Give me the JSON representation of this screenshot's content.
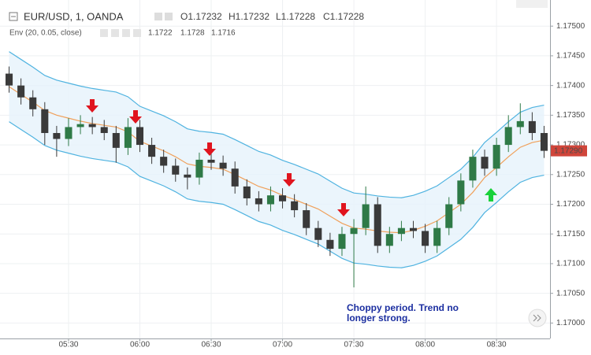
{
  "chart_data": {
    "type": "candlestick",
    "title": "EUR/USD, 1, OANDA",
    "ohlc_text": [
      "O1.17232",
      "H1.17232",
      "L1.17228",
      "C1.17228"
    ],
    "indicator": {
      "name": "Env (20, 0.05, close)",
      "bands": [
        {
          "role": "mid",
          "color": "#f0a05a",
          "legend_value": "1.1722",
          "values": [
            1.17398,
            1.17385,
            1.17372,
            1.17358,
            1.1735,
            1.17345,
            1.1734,
            1.17336,
            1.17333,
            1.1733,
            1.17322,
            1.17306,
            1.17298,
            1.1729,
            1.1728,
            1.17268,
            1.17264,
            1.17262,
            1.17259,
            1.1725,
            1.1724,
            1.1723,
            1.17224,
            1.17215,
            1.17208,
            1.172,
            1.17192,
            1.1718,
            1.17168,
            1.1716,
            1.17158,
            1.17155,
            1.17153,
            1.17152,
            1.17156,
            1.17163,
            1.17172,
            1.17186,
            1.172,
            1.1722,
            1.17245,
            1.17262,
            1.1728,
            1.17296,
            1.17304,
            1.17308
          ]
        },
        {
          "role": "upper",
          "color": "#4fb3e0",
          "legend_value": "1.1728",
          "values": [
            1.17457,
            1.17444,
            1.17431,
            1.17417,
            1.17409,
            1.17404,
            1.17399,
            1.17395,
            1.17392,
            1.17389,
            1.17381,
            1.17365,
            1.17357,
            1.17349,
            1.17339,
            1.17327,
            1.17323,
            1.17321,
            1.17318,
            1.17309,
            1.17299,
            1.17289,
            1.17283,
            1.17274,
            1.17267,
            1.17259,
            1.17251,
            1.17239,
            1.17227,
            1.17219,
            1.17217,
            1.17214,
            1.17212,
            1.17211,
            1.17215,
            1.17222,
            1.17231,
            1.17245,
            1.17259,
            1.17279,
            1.17304,
            1.17321,
            1.17339,
            1.17355,
            1.17363,
            1.17367
          ]
        },
        {
          "role": "lower",
          "color": "#4fb3e0",
          "legend_value": "1.1716",
          "values": [
            1.17339,
            1.17326,
            1.17313,
            1.17299,
            1.17291,
            1.17286,
            1.17281,
            1.17277,
            1.17274,
            1.17271,
            1.17263,
            1.17247,
            1.17239,
            1.17231,
            1.17221,
            1.17209,
            1.17205,
            1.17203,
            1.172,
            1.17191,
            1.17181,
            1.17171,
            1.17165,
            1.17156,
            1.17149,
            1.17141,
            1.17133,
            1.17121,
            1.17109,
            1.17101,
            1.17099,
            1.17096,
            1.17094,
            1.17093,
            1.17097,
            1.17104,
            1.17113,
            1.17127,
            1.17141,
            1.17161,
            1.17186,
            1.17203,
            1.17221,
            1.17237,
            1.17245,
            1.17249
          ]
        }
      ]
    },
    "categories": [
      null,
      null,
      null,
      null,
      null,
      "05:30",
      null,
      null,
      null,
      null,
      null,
      "06:00",
      null,
      null,
      null,
      null,
      null,
      "06:30",
      null,
      null,
      null,
      null,
      null,
      "07:00",
      null,
      null,
      null,
      null,
      null,
      "07:30",
      null,
      null,
      null,
      null,
      null,
      "08:00",
      null,
      null,
      null,
      null,
      null,
      "08:30",
      null,
      null,
      null,
      null
    ],
    "open": [
      1.1742,
      1.174,
      1.1738,
      1.1736,
      1.1732,
      1.1731,
      1.1733,
      1.17335,
      1.1733,
      1.1732,
      1.17295,
      1.1733,
      1.173,
      1.1728,
      1.17265,
      1.1725,
      1.17245,
      1.17275,
      1.1727,
      1.1726,
      1.1723,
      1.1721,
      1.172,
      1.17215,
      1.17205,
      1.1719,
      1.1716,
      1.1714,
      1.17125,
      1.1715,
      1.1716,
      1.172,
      1.1713,
      1.1715,
      1.1716,
      1.17155,
      1.1713,
      1.1716,
      1.172,
      1.1724,
      1.1728,
      1.1726,
      1.173,
      1.1733,
      1.1734,
      1.1732
    ],
    "high": [
      1.17432,
      1.17412,
      1.17392,
      1.17372,
      1.17332,
      1.17345,
      1.1735,
      1.17347,
      1.17342,
      1.17332,
      1.17345,
      1.17342,
      1.17312,
      1.17292,
      1.17277,
      1.17262,
      1.17287,
      1.17287,
      1.17282,
      1.17272,
      1.17242,
      1.17222,
      1.1723,
      1.17227,
      1.17217,
      1.17202,
      1.17172,
      1.17152,
      1.17162,
      1.17175,
      1.1723,
      1.17212,
      1.17162,
      1.17172,
      1.17172,
      1.17167,
      1.17172,
      1.17212,
      1.17252,
      1.17292,
      1.17292,
      1.17312,
      1.1735,
      1.1737,
      1.17355,
      1.17332
    ],
    "low": [
      1.17388,
      1.17368,
      1.17348,
      1.173,
      1.1728,
      1.17298,
      1.17318,
      1.17318,
      1.17308,
      1.1727,
      1.17283,
      1.17288,
      1.17268,
      1.17253,
      1.17238,
      1.17225,
      1.17233,
      1.17258,
      1.17248,
      1.17218,
      1.17198,
      1.17188,
      1.17188,
      1.17193,
      1.17178,
      1.17148,
      1.17128,
      1.17113,
      1.17113,
      1.1706,
      1.17148,
      1.17118,
      1.17118,
      1.17138,
      1.17143,
      1.17118,
      1.17118,
      1.17148,
      1.17188,
      1.17228,
      1.17248,
      1.17248,
      1.17288,
      1.17318,
      1.17308,
      1.17278
    ],
    "close": [
      1.174,
      1.1738,
      1.1736,
      1.1732,
      1.1731,
      1.1733,
      1.17335,
      1.1733,
      1.1732,
      1.17295,
      1.1733,
      1.173,
      1.1728,
      1.17265,
      1.1725,
      1.17245,
      1.17275,
      1.1727,
      1.1726,
      1.1723,
      1.1721,
      1.172,
      1.17215,
      1.17205,
      1.1719,
      1.1716,
      1.1714,
      1.17125,
      1.1715,
      1.1716,
      1.172,
      1.1713,
      1.1715,
      1.1716,
      1.17155,
      1.1713,
      1.1716,
      1.172,
      1.1724,
      1.1728,
      1.1726,
      1.173,
      1.1733,
      1.1734,
      1.1732,
      1.1729
    ],
    "up_color": "#2f7a47",
    "down_color": "#3a3a3a",
    "ylim": [
      1.16974,
      1.17544
    ],
    "yticks": [
      {
        "value": 1.17,
        "label": "1.17000"
      },
      {
        "value": 1.1705,
        "label": "1.17050"
      },
      {
        "value": 1.171,
        "label": "1.17100"
      },
      {
        "value": 1.1715,
        "label": "1.17150"
      },
      {
        "value": 1.172,
        "label": "1.17200"
      },
      {
        "value": 1.1725,
        "label": "1.17250"
      },
      {
        "value": 1.173,
        "label": "1.17300"
      },
      {
        "value": 1.1735,
        "label": "1.17350"
      },
      {
        "value": 1.174,
        "label": "1.17400"
      },
      {
        "value": 1.1745,
        "label": "1.17450"
      },
      {
        "value": 1.175,
        "label": "1.17500"
      }
    ],
    "last_price": {
      "value": 1.1729,
      "label": "1.17290"
    },
    "grid": true,
    "annotation": [
      "Choppy period. Trend no",
      "longer strong."
    ]
  }
}
